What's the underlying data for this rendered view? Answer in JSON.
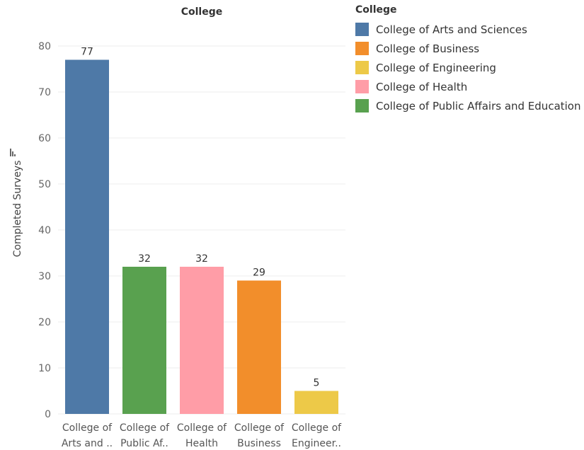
{
  "chart_data": {
    "type": "bar",
    "title": "College",
    "ylabel": "Completed Surveys",
    "ylim": [
      0,
      85
    ],
    "yticks": [
      0,
      10,
      20,
      30,
      40,
      50,
      60,
      70,
      80
    ],
    "grid": true,
    "categories": [
      [
        "College of",
        "Arts and .."
      ],
      [
        "College of",
        "Public Af.."
      ],
      [
        "College of",
        "Health"
      ],
      [
        "College of",
        "Business"
      ],
      [
        "College of",
        "Engineer.."
      ]
    ],
    "values": [
      77,
      32,
      32,
      29,
      5
    ],
    "data_labels": [
      "77",
      "32",
      "32",
      "29",
      "5"
    ],
    "colors": [
      "#4e79a7",
      "#59a14f",
      "#ff9da7",
      "#f28e2b",
      "#edc948"
    ],
    "legend": {
      "title": "College",
      "placement": "right",
      "items": [
        {
          "label": "College of Arts and Sciences",
          "color": "#4e79a7"
        },
        {
          "label": "College of Business",
          "color": "#f28e2b"
        },
        {
          "label": "College of Engineering",
          "color": "#edc948"
        },
        {
          "label": "College of Health",
          "color": "#ff9da7"
        },
        {
          "label": "College of Public Affairs and Education",
          "color": "#59a14f"
        }
      ]
    }
  },
  "icons": {
    "sort": "sort-icon"
  }
}
